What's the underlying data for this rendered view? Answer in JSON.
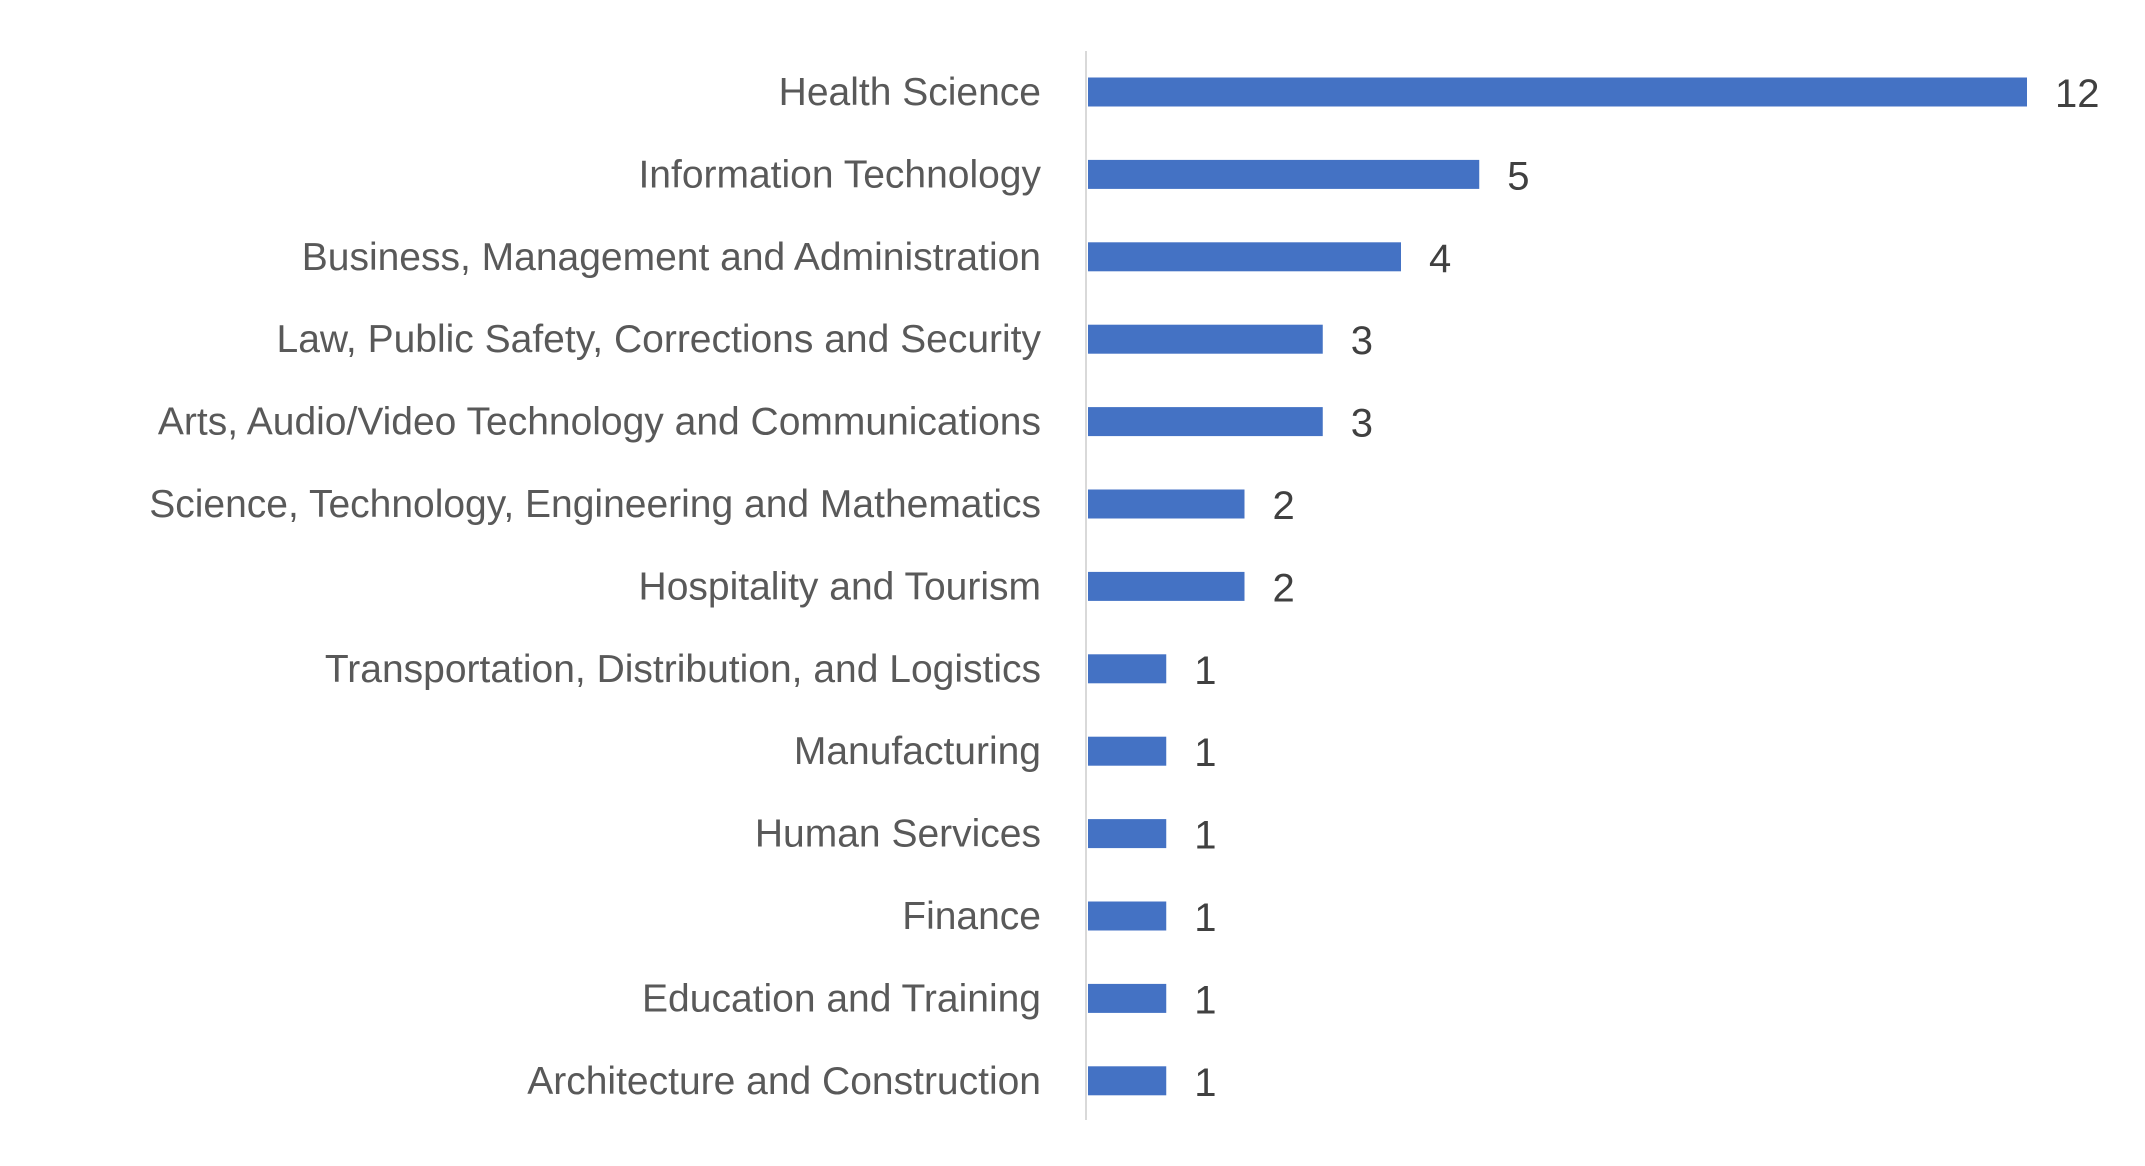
{
  "chart_data": {
    "type": "bar",
    "orientation": "horizontal",
    "title": "",
    "xlabel": "",
    "ylabel": "",
    "categories": [
      "Health Science",
      "Information Technology",
      "Business, Management and Administration",
      "Law, Public Safety, Corrections and Security",
      "Arts, Audio/Video Technology and Communications",
      "Science, Technology, Engineering and Mathematics",
      "Hospitality and Tourism",
      "Transportation, Distribution, and Logistics",
      "Manufacturing",
      "Human Services",
      "Finance",
      "Education and Training",
      "Architecture and Construction"
    ],
    "values": [
      12,
      5,
      4,
      3,
      3,
      2,
      2,
      1,
      1,
      1,
      1,
      1,
      1
    ],
    "xlim": [
      0,
      12
    ],
    "grid": false,
    "data_labels": true,
    "bar_color": "#4472C4",
    "axis_color": "#D9D9D9"
  }
}
